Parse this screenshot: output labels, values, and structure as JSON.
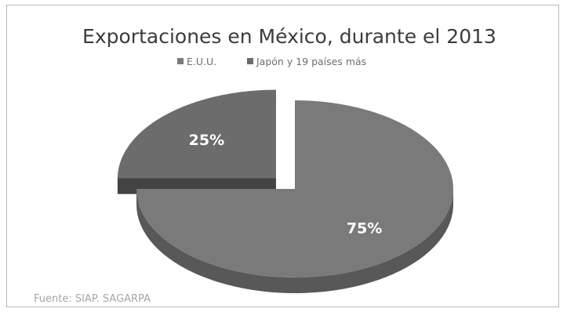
{
  "chart_data": {
    "type": "pie",
    "title": "Exportaciones en México, durante el  2013",
    "categories": [
      "E.U.U.",
      "Japón y 19 países más"
    ],
    "values": [
      75,
      25
    ],
    "labels": [
      "75%",
      "25%"
    ],
    "legend_position": "top",
    "exploded": [
      false,
      true
    ],
    "three_d": true,
    "colors": [
      "#7a7a7a",
      "#6c6c6c"
    ],
    "source": "Fuente: SIAP. SAGARPA"
  }
}
